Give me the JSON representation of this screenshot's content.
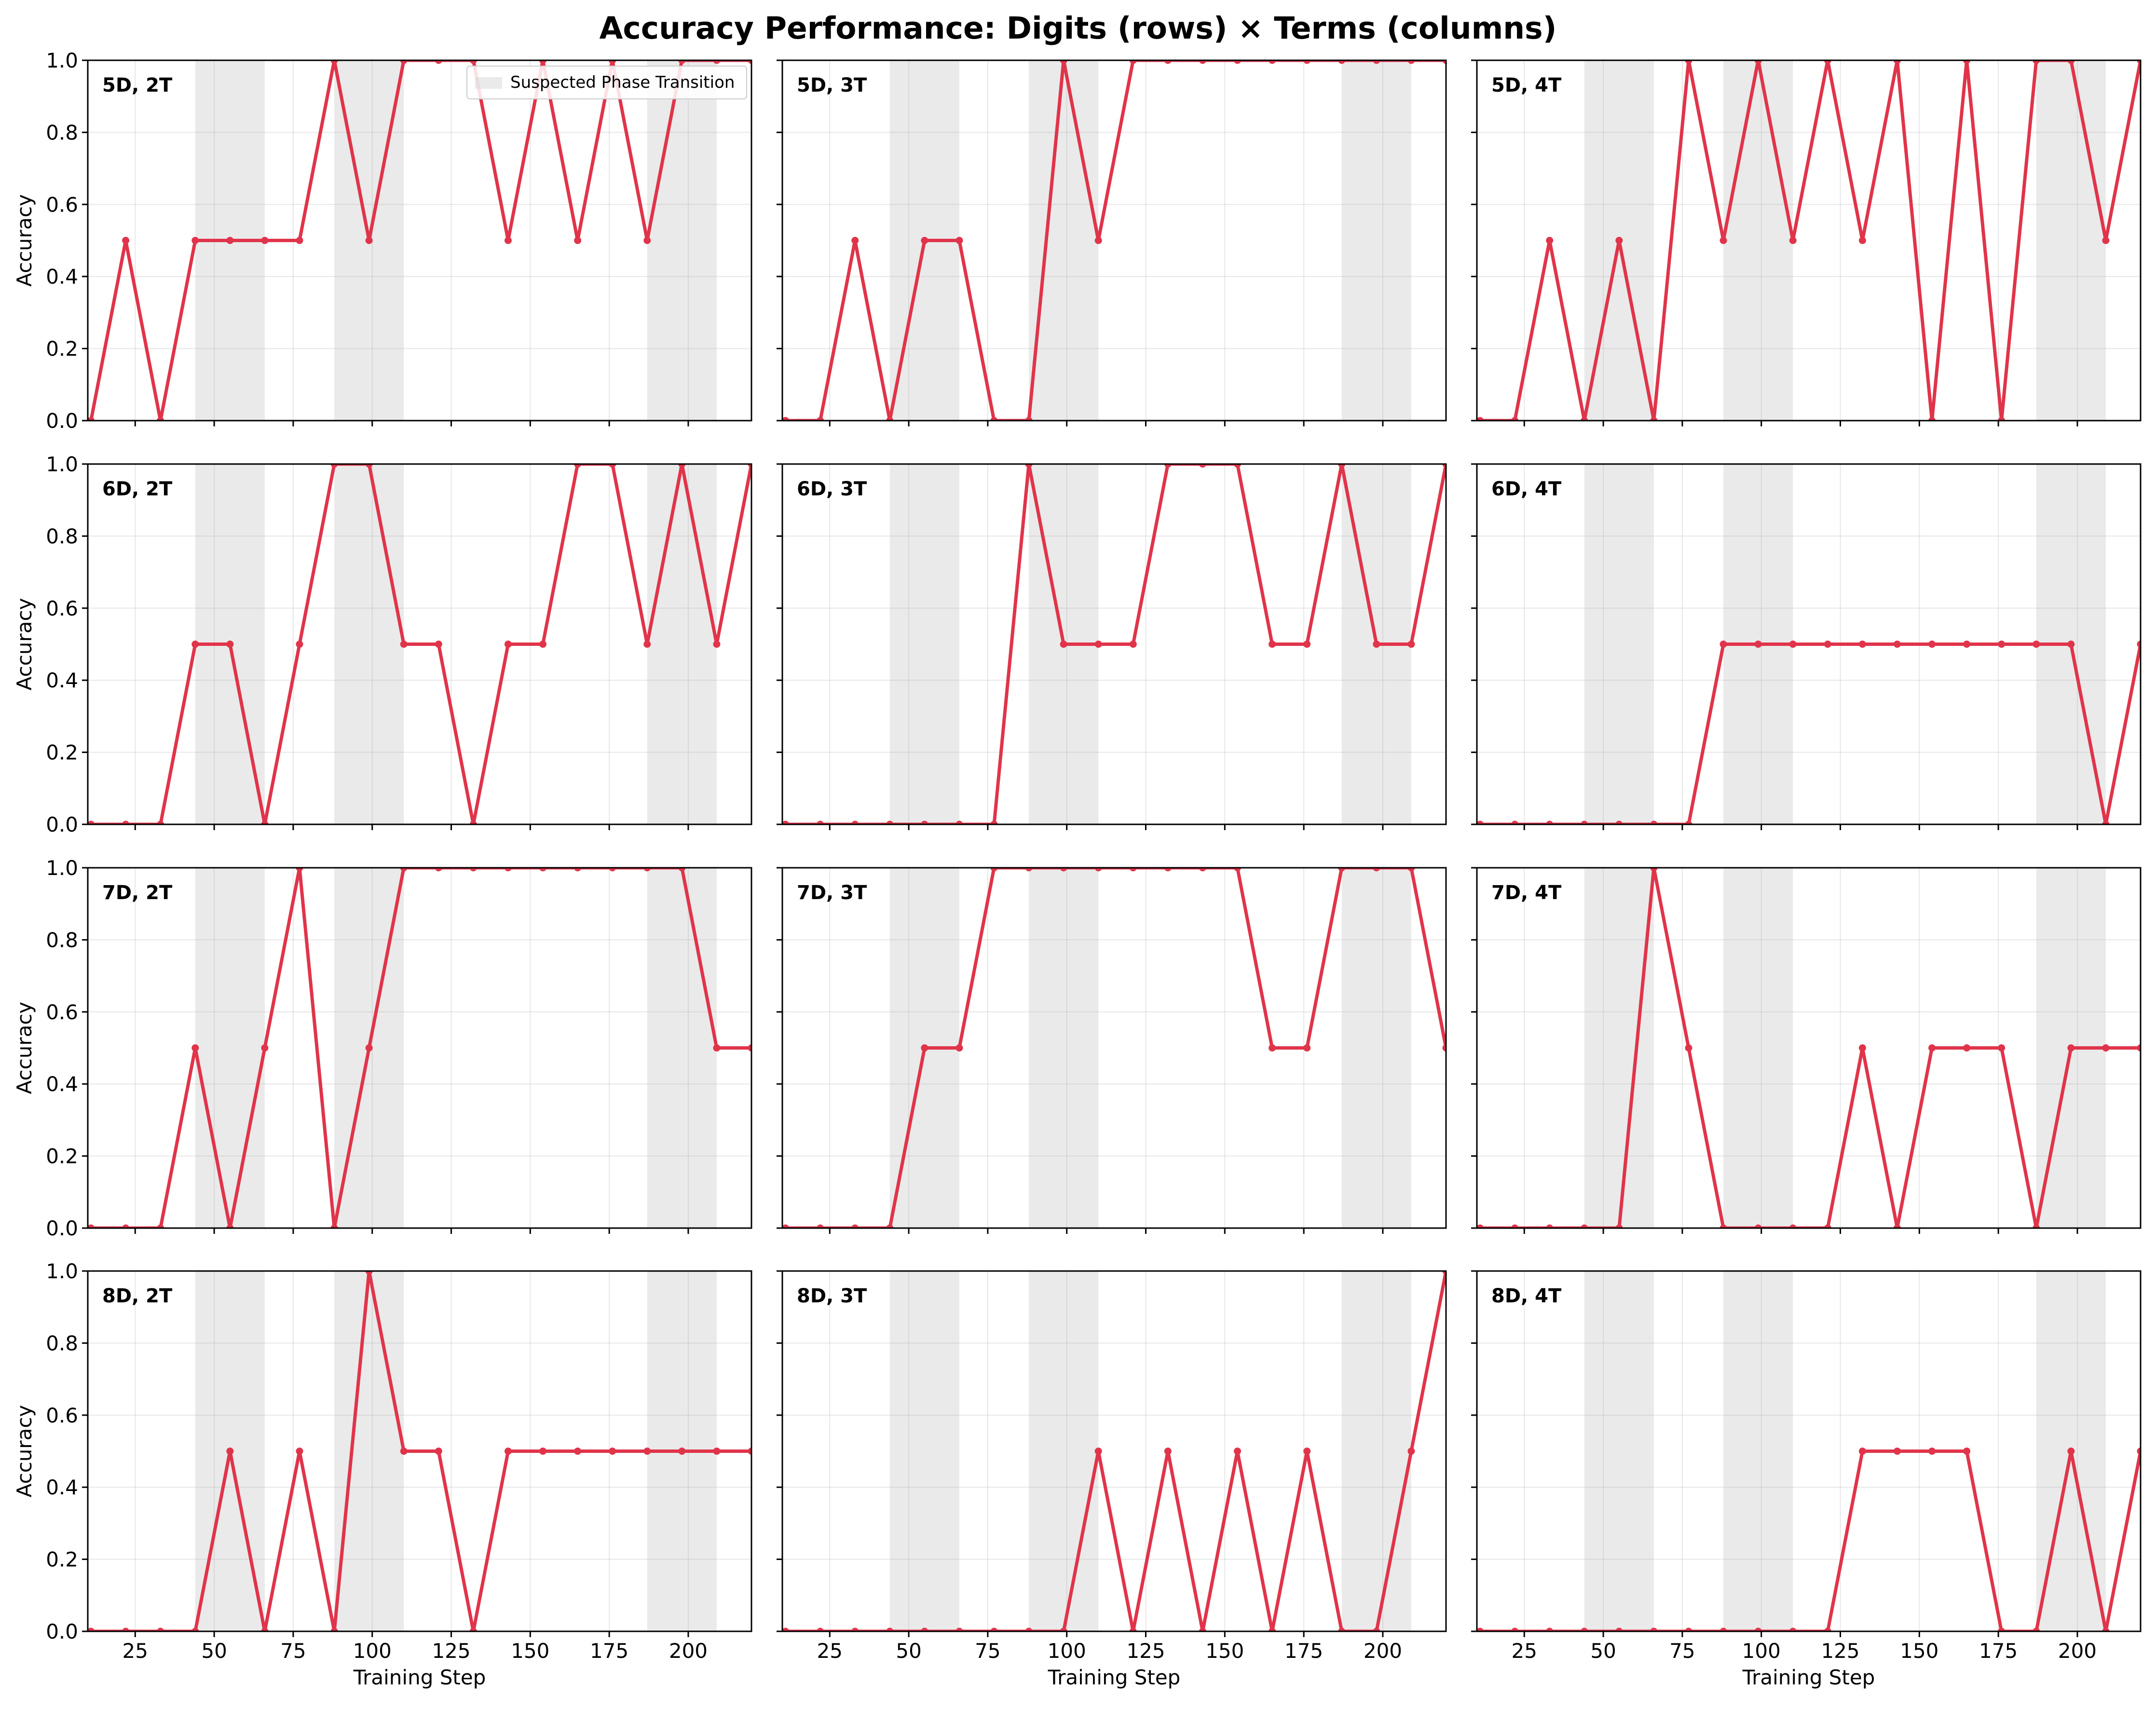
{
  "chart_data": {
    "type": "line",
    "title": "Accuracy Performance: Digits (rows) × Terms (columns)",
    "xlabel": "Training Step",
    "ylabel": "Accuracy",
    "xlim": [
      10,
      220
    ],
    "ylim": [
      0,
      1
    ],
    "xticks": [
      25,
      50,
      75,
      100,
      125,
      150,
      175,
      200
    ],
    "yticks": [
      0.0,
      0.2,
      0.4,
      0.6,
      0.8,
      1.0
    ],
    "ytick_labels": [
      "0.0",
      "0.2",
      "0.4",
      "0.6",
      "0.8",
      "1.0"
    ],
    "grid": true,
    "line_color": "#e0344a",
    "shade_color": "#d9d9d9",
    "legend": {
      "label": "Suspected Phase Transition",
      "position": "top-right of first panel"
    },
    "shaded_regions": [
      {
        "column": "2T",
        "ranges": [
          [
            44,
            66
          ],
          [
            88,
            110
          ],
          [
            187,
            209
          ]
        ]
      },
      {
        "column": "3T",
        "ranges": [
          [
            44,
            66
          ],
          [
            88,
            110
          ],
          [
            187,
            209
          ]
        ]
      },
      {
        "column": "4T",
        "ranges": [
          [
            44,
            66
          ],
          [
            88,
            110
          ],
          [
            187,
            209
          ]
        ]
      }
    ],
    "x": [
      11,
      22,
      33,
      44,
      55,
      66,
      77,
      88,
      99,
      110,
      121,
      132,
      143,
      154,
      165,
      176,
      187,
      198,
      209,
      220
    ],
    "panels": [
      {
        "label": "5D, 2T",
        "values": [
          0,
          0.5,
          0,
          0.5,
          0.5,
          0.5,
          0.5,
          1,
          0.5,
          1,
          1,
          1,
          0.5,
          1,
          0.5,
          1,
          0.5,
          1,
          1,
          1
        ]
      },
      {
        "label": "5D, 3T",
        "values": [
          0,
          0,
          0.5,
          0,
          0.5,
          0.5,
          0,
          0,
          1,
          0.5,
          1,
          1,
          1,
          1,
          1,
          1,
          1,
          1,
          1,
          1
        ]
      },
      {
        "label": "5D, 4T",
        "values": [
          0,
          0,
          0.5,
          0,
          0.5,
          0,
          1,
          0.5,
          1,
          0.5,
          1,
          0.5,
          1,
          0,
          1,
          0,
          1,
          1,
          0.5,
          1
        ]
      },
      {
        "label": "6D, 2T",
        "values": [
          0,
          0,
          0,
          0.5,
          0.5,
          0,
          0.5,
          1,
          1,
          0.5,
          0.5,
          0,
          0.5,
          0.5,
          1,
          1,
          0.5,
          1,
          0.5,
          1
        ]
      },
      {
        "label": "6D, 3T",
        "values": [
          0,
          0,
          0,
          0,
          0,
          0,
          0,
          1,
          0.5,
          0.5,
          0.5,
          1,
          1,
          1,
          0.5,
          0.5,
          1,
          0.5,
          0.5,
          1
        ]
      },
      {
        "label": "6D, 4T",
        "values": [
          0,
          0,
          0,
          0,
          0,
          0,
          0,
          0.5,
          0.5,
          0.5,
          0.5,
          0.5,
          0.5,
          0.5,
          0.5,
          0.5,
          0.5,
          0.5,
          0,
          0.5
        ]
      },
      {
        "label": "7D, 2T",
        "values": [
          0,
          0,
          0,
          0.5,
          0,
          0.5,
          1,
          0,
          0.5,
          1,
          1,
          1,
          1,
          1,
          1,
          1,
          1,
          1,
          0.5,
          0.5
        ]
      },
      {
        "label": "7D, 3T",
        "values": [
          0,
          0,
          0,
          0,
          0.5,
          0.5,
          1,
          1,
          1,
          1,
          1,
          1,
          1,
          1,
          0.5,
          0.5,
          1,
          1,
          1,
          0.5
        ]
      },
      {
        "label": "7D, 4T",
        "values": [
          0,
          0,
          0,
          0,
          0,
          1,
          0.5,
          0,
          0,
          0,
          0,
          0.5,
          0,
          0.5,
          0.5,
          0.5,
          0,
          0.5,
          0.5,
          0.5
        ]
      },
      {
        "label": "8D, 2T",
        "values": [
          0,
          0,
          0,
          0,
          0.5,
          0,
          0.5,
          0,
          1,
          0.5,
          0.5,
          0,
          0.5,
          0.5,
          0.5,
          0.5,
          0.5,
          0.5,
          0.5,
          0.5
        ]
      },
      {
        "label": "8D, 3T",
        "values": [
          0,
          0,
          0,
          0,
          0,
          0,
          0,
          0,
          0,
          0.5,
          0,
          0.5,
          0,
          0.5,
          0,
          0.5,
          0,
          0,
          0.5,
          1
        ]
      },
      {
        "label": "8D, 4T",
        "values": [
          0,
          0,
          0,
          0,
          0,
          0,
          0,
          0,
          0,
          0,
          0,
          0.5,
          0.5,
          0.5,
          0.5,
          0,
          0,
          0.5,
          0,
          0.5
        ]
      }
    ]
  }
}
